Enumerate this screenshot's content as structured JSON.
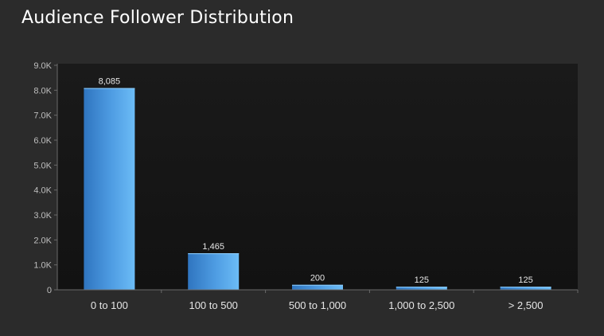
{
  "chart_data": {
    "type": "bar",
    "title": "Audience Follower Distribution",
    "xlabel": "",
    "ylabel": "",
    "categories": [
      "0 to 100",
      "100 to 500",
      "500 to 1,000",
      "1,000 to 2,500",
      "> 2,500"
    ],
    "values": [
      8085,
      1465,
      200,
      125,
      125
    ],
    "data_labels": [
      "8,085",
      "1,465",
      "200",
      "125",
      "125"
    ],
    "ylim": [
      0,
      9000
    ],
    "yticks": [
      0,
      1000,
      2000,
      3000,
      4000,
      5000,
      6000,
      7000,
      8000,
      9000
    ],
    "ytick_labels": [
      "0",
      "1.0K",
      "2.0K",
      "3.0K",
      "4.0K",
      "5.0K",
      "6.0K",
      "7.0K",
      "8.0K",
      "9.0K"
    ],
    "grid": false,
    "legend": "none"
  },
  "colors": {
    "background": "#2b2b2b",
    "plot_area": "#161616",
    "bar_light": "#6cbcf6",
    "bar_dark": "#2f75c0",
    "axis": "#6a6a6a"
  }
}
